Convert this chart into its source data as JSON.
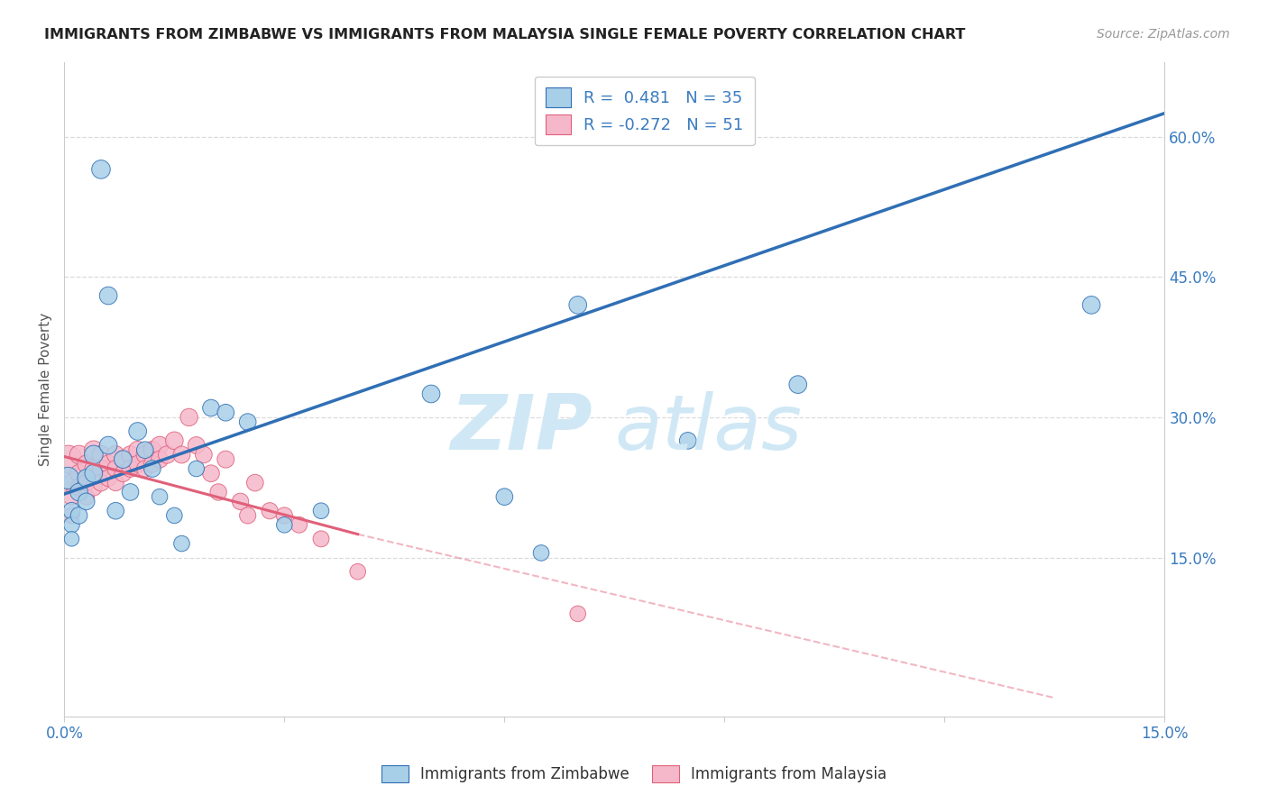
{
  "title": "IMMIGRANTS FROM ZIMBABWE VS IMMIGRANTS FROM MALAYSIA SINGLE FEMALE POVERTY CORRELATION CHART",
  "source": "Source: ZipAtlas.com",
  "ylabel": "Single Female Poverty",
  "xmin": 0.0,
  "xmax": 0.15,
  "ymin": -0.02,
  "ymax": 0.68,
  "R_zimbabwe": 0.481,
  "N_zimbabwe": 35,
  "R_malaysia": -0.272,
  "N_malaysia": 51,
  "color_zimbabwe": "#a8cfe8",
  "color_malaysia": "#f5b8cb",
  "color_line_zimbabwe": "#2f6fb5",
  "color_line_malaysia": "#e0607a",
  "watermark_zim": "ZIP",
  "watermark_atl": "atlas",
  "watermark_color": "#d0e8f5",
  "zim_line_x0": 0.0,
  "zim_line_y0": 0.218,
  "zim_line_x1": 0.15,
  "zim_line_y1": 0.625,
  "mal_line_solid_x0": 0.0,
  "mal_line_solid_y0": 0.258,
  "mal_line_solid_x1": 0.04,
  "mal_line_solid_y1": 0.175,
  "mal_line_dash_x1": 0.135,
  "mal_line_dash_y1": 0.0,
  "zim_x": [
    0.0005,
    0.001,
    0.001,
    0.001,
    0.002,
    0.002,
    0.003,
    0.003,
    0.004,
    0.004,
    0.005,
    0.006,
    0.006,
    0.007,
    0.008,
    0.009,
    0.01,
    0.011,
    0.012,
    0.013,
    0.015,
    0.016,
    0.018,
    0.02,
    0.022,
    0.025,
    0.03,
    0.035,
    0.05,
    0.06,
    0.065,
    0.07,
    0.085,
    0.1,
    0.14
  ],
  "zim_y": [
    0.235,
    0.2,
    0.185,
    0.17,
    0.22,
    0.195,
    0.235,
    0.21,
    0.26,
    0.24,
    0.565,
    0.27,
    0.43,
    0.2,
    0.255,
    0.22,
    0.285,
    0.265,
    0.245,
    0.215,
    0.195,
    0.165,
    0.245,
    0.31,
    0.305,
    0.295,
    0.185,
    0.2,
    0.325,
    0.215,
    0.155,
    0.42,
    0.275,
    0.335,
    0.42
  ],
  "zim_sizes": [
    300,
    180,
    160,
    140,
    200,
    180,
    200,
    180,
    220,
    200,
    220,
    200,
    200,
    180,
    200,
    180,
    200,
    180,
    180,
    160,
    160,
    160,
    160,
    180,
    180,
    180,
    160,
    160,
    200,
    180,
    160,
    200,
    180,
    200,
    200
  ],
  "mal_x": [
    0.0005,
    0.001,
    0.001,
    0.001,
    0.002,
    0.002,
    0.002,
    0.003,
    0.003,
    0.003,
    0.004,
    0.004,
    0.004,
    0.005,
    0.005,
    0.005,
    0.006,
    0.006,
    0.007,
    0.007,
    0.007,
    0.008,
    0.008,
    0.009,
    0.009,
    0.01,
    0.01,
    0.011,
    0.011,
    0.012,
    0.012,
    0.013,
    0.013,
    0.014,
    0.015,
    0.016,
    0.017,
    0.018,
    0.019,
    0.02,
    0.021,
    0.022,
    0.024,
    0.025,
    0.026,
    0.028,
    0.03,
    0.032,
    0.035,
    0.04,
    0.07
  ],
  "mal_y": [
    0.255,
    0.23,
    0.215,
    0.195,
    0.26,
    0.24,
    0.225,
    0.25,
    0.23,
    0.215,
    0.265,
    0.245,
    0.225,
    0.26,
    0.245,
    0.23,
    0.25,
    0.235,
    0.26,
    0.245,
    0.23,
    0.255,
    0.24,
    0.26,
    0.245,
    0.265,
    0.25,
    0.26,
    0.245,
    0.265,
    0.25,
    0.27,
    0.255,
    0.26,
    0.275,
    0.26,
    0.3,
    0.27,
    0.26,
    0.24,
    0.22,
    0.255,
    0.21,
    0.195,
    0.23,
    0.2,
    0.195,
    0.185,
    0.17,
    0.135,
    0.09
  ],
  "mal_sizes": [
    500,
    200,
    180,
    160,
    220,
    200,
    180,
    200,
    180,
    165,
    220,
    200,
    180,
    210,
    195,
    180,
    200,
    180,
    200,
    185,
    170,
    195,
    180,
    195,
    180,
    200,
    185,
    195,
    180,
    200,
    185,
    200,
    185,
    195,
    200,
    185,
    195,
    185,
    180,
    180,
    175,
    185,
    175,
    170,
    180,
    170,
    170,
    165,
    165,
    160,
    160
  ]
}
